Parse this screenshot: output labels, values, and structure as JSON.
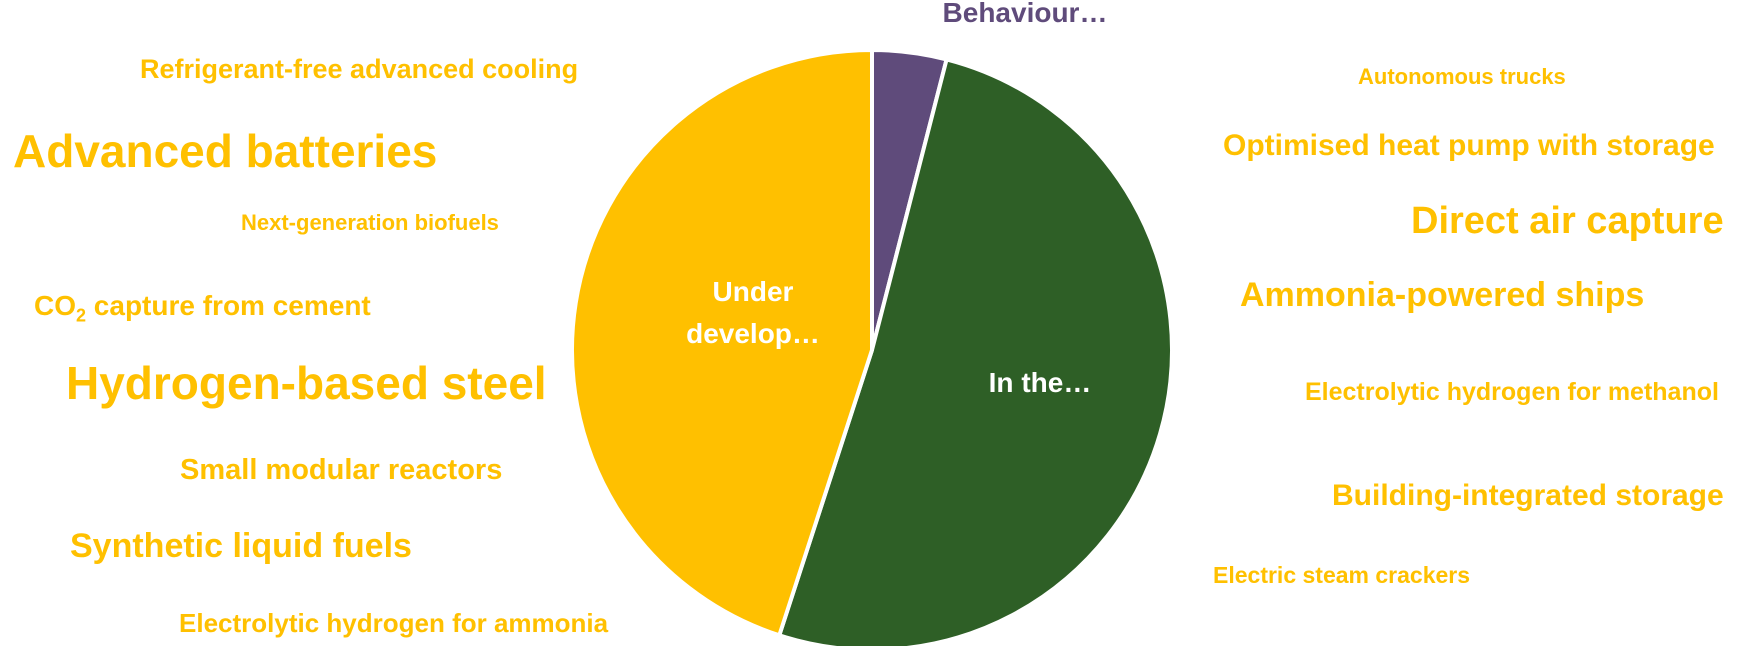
{
  "colors": {
    "text_accent": "#FFC000"
  },
  "chart_data": {
    "type": "pie",
    "title": "",
    "slices": [
      {
        "name": "Behaviour…",
        "value": 4,
        "color": "#5F4B7B",
        "label_color": "#5F4B7B",
        "label_lines": [
          "Behaviour…"
        ]
      },
      {
        "name": "In the…",
        "value": 51,
        "color": "#2E5F26",
        "label_color": "#FFFFFF",
        "label_lines": [
          "In the…"
        ]
      },
      {
        "name": "Under develop…",
        "value": 45,
        "color": "#FFC000",
        "label_color": "#FFFFFF",
        "label_lines": [
          "Under",
          "develop…"
        ]
      }
    ]
  },
  "technologies_left": [
    {
      "text": "Refrigerant-free advanced cooling",
      "prefix": "",
      "sub": "",
      "suffix": ""
    },
    {
      "text": "Advanced batteries",
      "prefix": "",
      "sub": "",
      "suffix": ""
    },
    {
      "text": "Next-generation biofuels",
      "prefix": "",
      "sub": "",
      "suffix": ""
    },
    {
      "text": "CO2 capture from cement",
      "prefix": "CO",
      "sub": "2",
      "suffix": " capture from cement"
    },
    {
      "text": "Hydrogen-based steel",
      "prefix": "",
      "sub": "",
      "suffix": ""
    },
    {
      "text": "Small modular reactors",
      "prefix": "",
      "sub": "",
      "suffix": ""
    },
    {
      "text": "Synthetic liquid fuels",
      "prefix": "",
      "sub": "",
      "suffix": ""
    },
    {
      "text": "Electrolytic hydrogen for ammonia",
      "prefix": "",
      "sub": "",
      "suffix": ""
    }
  ],
  "technologies_right": [
    {
      "text": "Autonomous trucks"
    },
    {
      "text": "Optimised heat pump with storage"
    },
    {
      "text": "Direct air capture"
    },
    {
      "text": "Ammonia-powered ships"
    },
    {
      "text": "Electrolytic hydrogen for methanol"
    },
    {
      "text": "Building-integrated storage"
    },
    {
      "text": "Electric steam crackers"
    }
  ]
}
